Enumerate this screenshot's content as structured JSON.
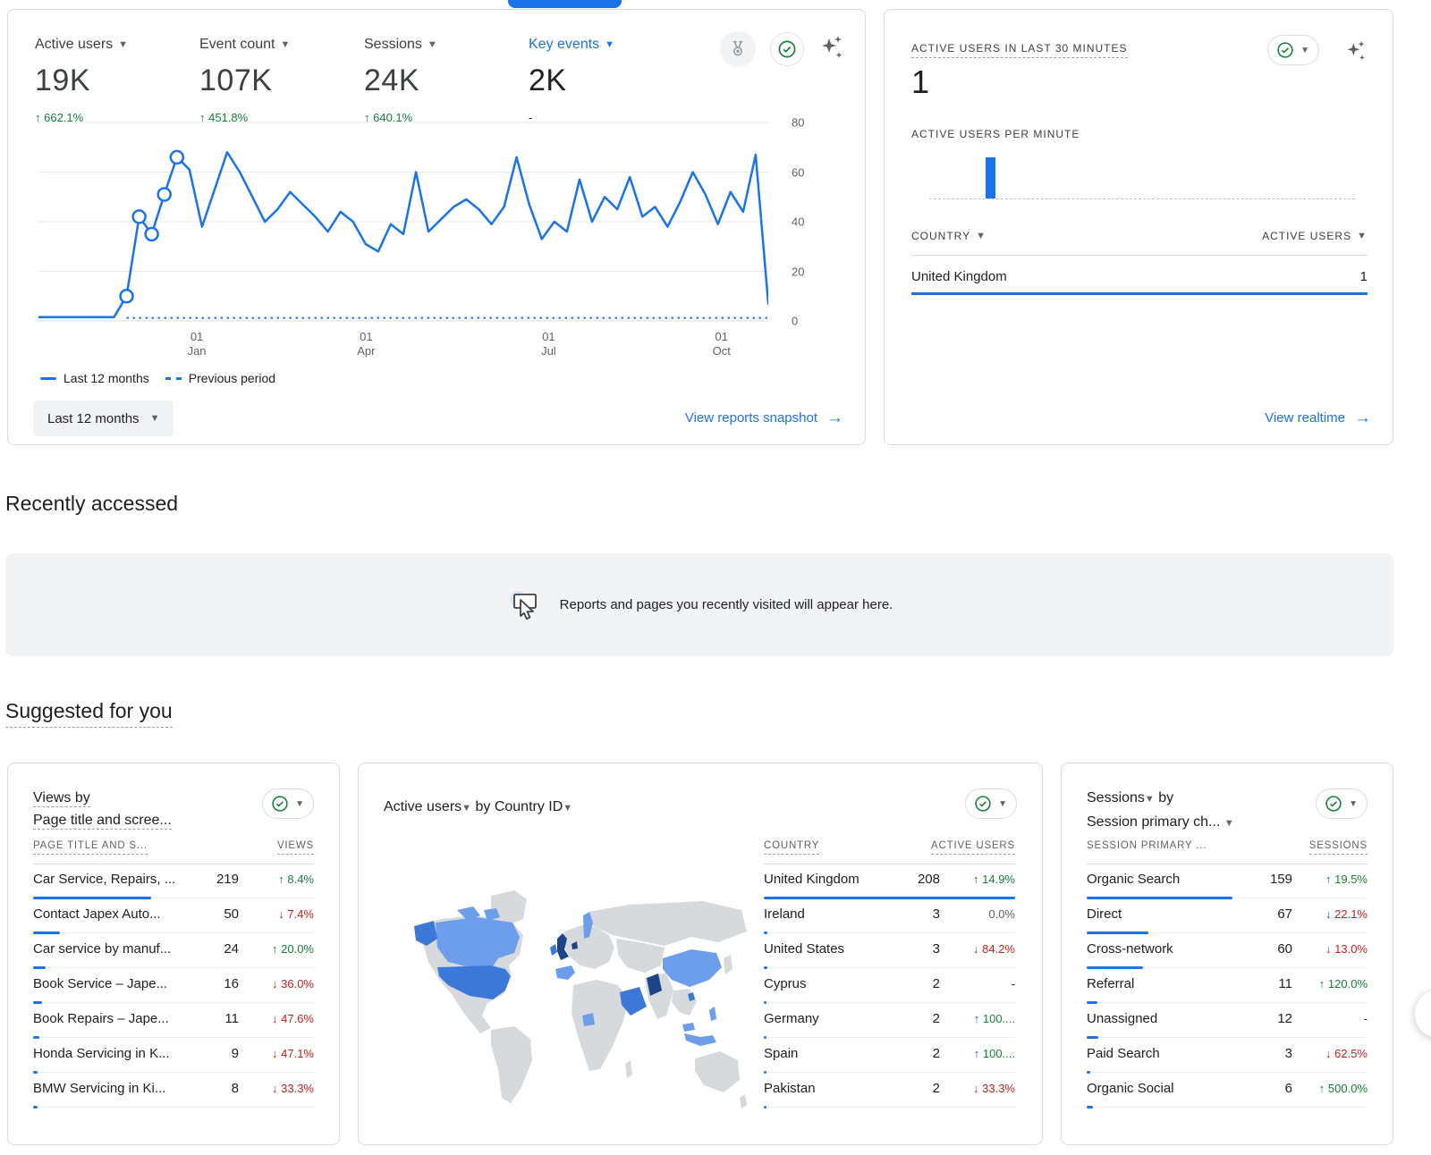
{
  "colors": {
    "blue": "#1a73e8",
    "green": "#188038",
    "red": "#c5221f",
    "map_base": "#d6dadd",
    "map_blue_light": "#6d9eeb",
    "map_blue_mid": "#3c78d8",
    "map_blue_dark": "#1c4587"
  },
  "overview_card": {
    "metrics": [
      {
        "label": "Active users",
        "value": "19K",
        "delta": "662.1%",
        "dir": "up",
        "selected": false
      },
      {
        "label": "Event count",
        "value": "107K",
        "delta": "451.8%",
        "dir": "up",
        "selected": false
      },
      {
        "label": "Sessions",
        "value": "24K",
        "delta": "640.1%",
        "dir": "up",
        "selected": false
      },
      {
        "label": "Key events",
        "value": "2K",
        "delta": "-",
        "dir": "none",
        "selected": true
      }
    ],
    "legend": [
      "Last 12 months",
      "Previous period"
    ],
    "range_label": "Last 12 months",
    "snapshot_link": "View reports snapshot",
    "link_arrow": "→"
  },
  "realtime_card": {
    "title": "ACTIVE USERS IN LAST 30 MINUTES",
    "value": "1",
    "per_minute_label": "ACTIVE USERS PER MINUTE",
    "col_country": "COUNTRY",
    "col_users": "ACTIVE USERS",
    "rows": [
      {
        "label": "United Kingdom",
        "value": "1",
        "bar_pct": 100
      }
    ],
    "realtime_link": "View realtime",
    "link_arrow": "→"
  },
  "recently_accessed": {
    "heading": "Recently accessed",
    "empty_message": "Reports and pages you recently visited will appear here."
  },
  "suggested": {
    "heading": "Suggested for you",
    "views_card": {
      "title_line1": "Views by",
      "title_line2": "Page title and scree...",
      "col1": "PAGE TITLE AND S...",
      "col2": "VIEWS",
      "rows": [
        {
          "label": "Car Service, Repairs, ...",
          "value": "219",
          "delta": "8.4%",
          "dir": "up",
          "bar_pct": 42
        },
        {
          "label": "Contact Japex Auto...",
          "value": "50",
          "delta": "7.4%",
          "dir": "down",
          "bar_pct": 9.6
        },
        {
          "label": "Car service by manuf...",
          "value": "24",
          "delta": "20.0%",
          "dir": "up",
          "bar_pct": 4.6
        },
        {
          "label": "Book Service – Jape...",
          "value": "16",
          "delta": "36.0%",
          "dir": "down",
          "bar_pct": 3.1
        },
        {
          "label": "Book Repairs – Jape...",
          "value": "11",
          "delta": "47.6%",
          "dir": "down",
          "bar_pct": 2.1
        },
        {
          "label": "Honda Servicing in K...",
          "value": "9",
          "delta": "47.1%",
          "dir": "down",
          "bar_pct": 1.7
        },
        {
          "label": "BMW Servicing in Ki...",
          "value": "8",
          "delta": "33.3%",
          "dir": "down",
          "bar_pct": 1.5
        }
      ]
    },
    "map_card": {
      "title_part1": "Active users",
      "title_part2": "by Country ID",
      "col1": "COUNTRY",
      "col2": "ACTIVE USERS",
      "rows": [
        {
          "label": "United Kingdom",
          "value": "208",
          "delta": "14.9%",
          "dir": "up",
          "bar_pct": 100
        },
        {
          "label": "Ireland",
          "value": "3",
          "delta": "0.0%",
          "dir": "flat",
          "bar_pct": 1.6
        },
        {
          "label": "United States",
          "value": "3",
          "delta": "84.2%",
          "dir": "down",
          "bar_pct": 1.6
        },
        {
          "label": "Cyprus",
          "value": "2",
          "delta": "-",
          "dir": "none",
          "bar_pct": 1.1
        },
        {
          "label": "Germany",
          "value": "2",
          "delta": "100....",
          "dir": "up",
          "bar_pct": 1.1
        },
        {
          "label": "Spain",
          "value": "2",
          "delta": "100....",
          "dir": "up",
          "bar_pct": 1.1
        },
        {
          "label": "Pakistan",
          "value": "2",
          "delta": "33.3%",
          "dir": "down",
          "bar_pct": 1.1
        }
      ]
    },
    "sessions_card": {
      "title_line1": "Sessions",
      "title_mid": "by",
      "title_line2": "Session primary ch...",
      "col1": "SESSION PRIMARY ...",
      "col2": "SESSIONS",
      "rows": [
        {
          "label": "Organic Search",
          "value": "159",
          "delta": "19.5%",
          "dir": "up",
          "bar_pct": 52
        },
        {
          "label": "Direct",
          "value": "67",
          "delta": "22.1%",
          "dir": "down",
          "bar_pct": 22
        },
        {
          "label": "Cross-network",
          "value": "60",
          "delta": "13.0%",
          "dir": "down",
          "bar_pct": 20
        },
        {
          "label": "Referral",
          "value": "11",
          "delta": "120.0%",
          "dir": "up",
          "bar_pct": 3.8
        },
        {
          "label": "Unassigned",
          "value": "12",
          "delta": "-",
          "dir": "none",
          "bar_pct": 4.1
        },
        {
          "label": "Paid Search",
          "value": "3",
          "delta": "62.5%",
          "dir": "down",
          "bar_pct": 1.2
        },
        {
          "label": "Organic Social",
          "value": "6",
          "delta": "500.0%",
          "dir": "up",
          "bar_pct": 2.1
        }
      ]
    }
  },
  "chart_data": [
    {
      "type": "line",
      "title": "Active users trend, last 12 months vs previous period",
      "ylim": [
        0,
        80
      ],
      "yticks": [
        0,
        20,
        40,
        60,
        80
      ],
      "xticks": [
        {
          "line1": "01",
          "line2": "Jan",
          "frac": 0.217
        },
        {
          "line1": "01",
          "line2": "Apr",
          "frac": 0.449
        },
        {
          "line1": "01",
          "line2": "Jul",
          "frac": 0.699
        },
        {
          "line1": "01",
          "line2": "Oct",
          "frac": 0.936
        }
      ],
      "grid": true,
      "legend_position": "bottom",
      "series": [
        {
          "name": "Last 12 months",
          "values": [
            1.5,
            1.5,
            1.5,
            1.5,
            1.5,
            1.5,
            1.5,
            10,
            42,
            35,
            51,
            66,
            61,
            38,
            53,
            68,
            60,
            50,
            40,
            45,
            52,
            47,
            42,
            36,
            44,
            40,
            31,
            28,
            39,
            35,
            60,
            36,
            41,
            46,
            49,
            45,
            39,
            46,
            66,
            47,
            33,
            40,
            36,
            57,
            40,
            50,
            45,
            58,
            42,
            46,
            38,
            48,
            60,
            51,
            39,
            52,
            44,
            67,
            7
          ],
          "marker_indices": [
            7,
            8,
            9,
            10,
            11
          ]
        },
        {
          "name": "Previous period",
          "style": "dotted",
          "constant_value": 1.2,
          "start_index": 7
        }
      ]
    },
    {
      "type": "bar",
      "title": "Active users per minute",
      "slots": 30,
      "bars": [
        {
          "slot": 4,
          "value": 1
        }
      ],
      "ymax": 1
    }
  ]
}
